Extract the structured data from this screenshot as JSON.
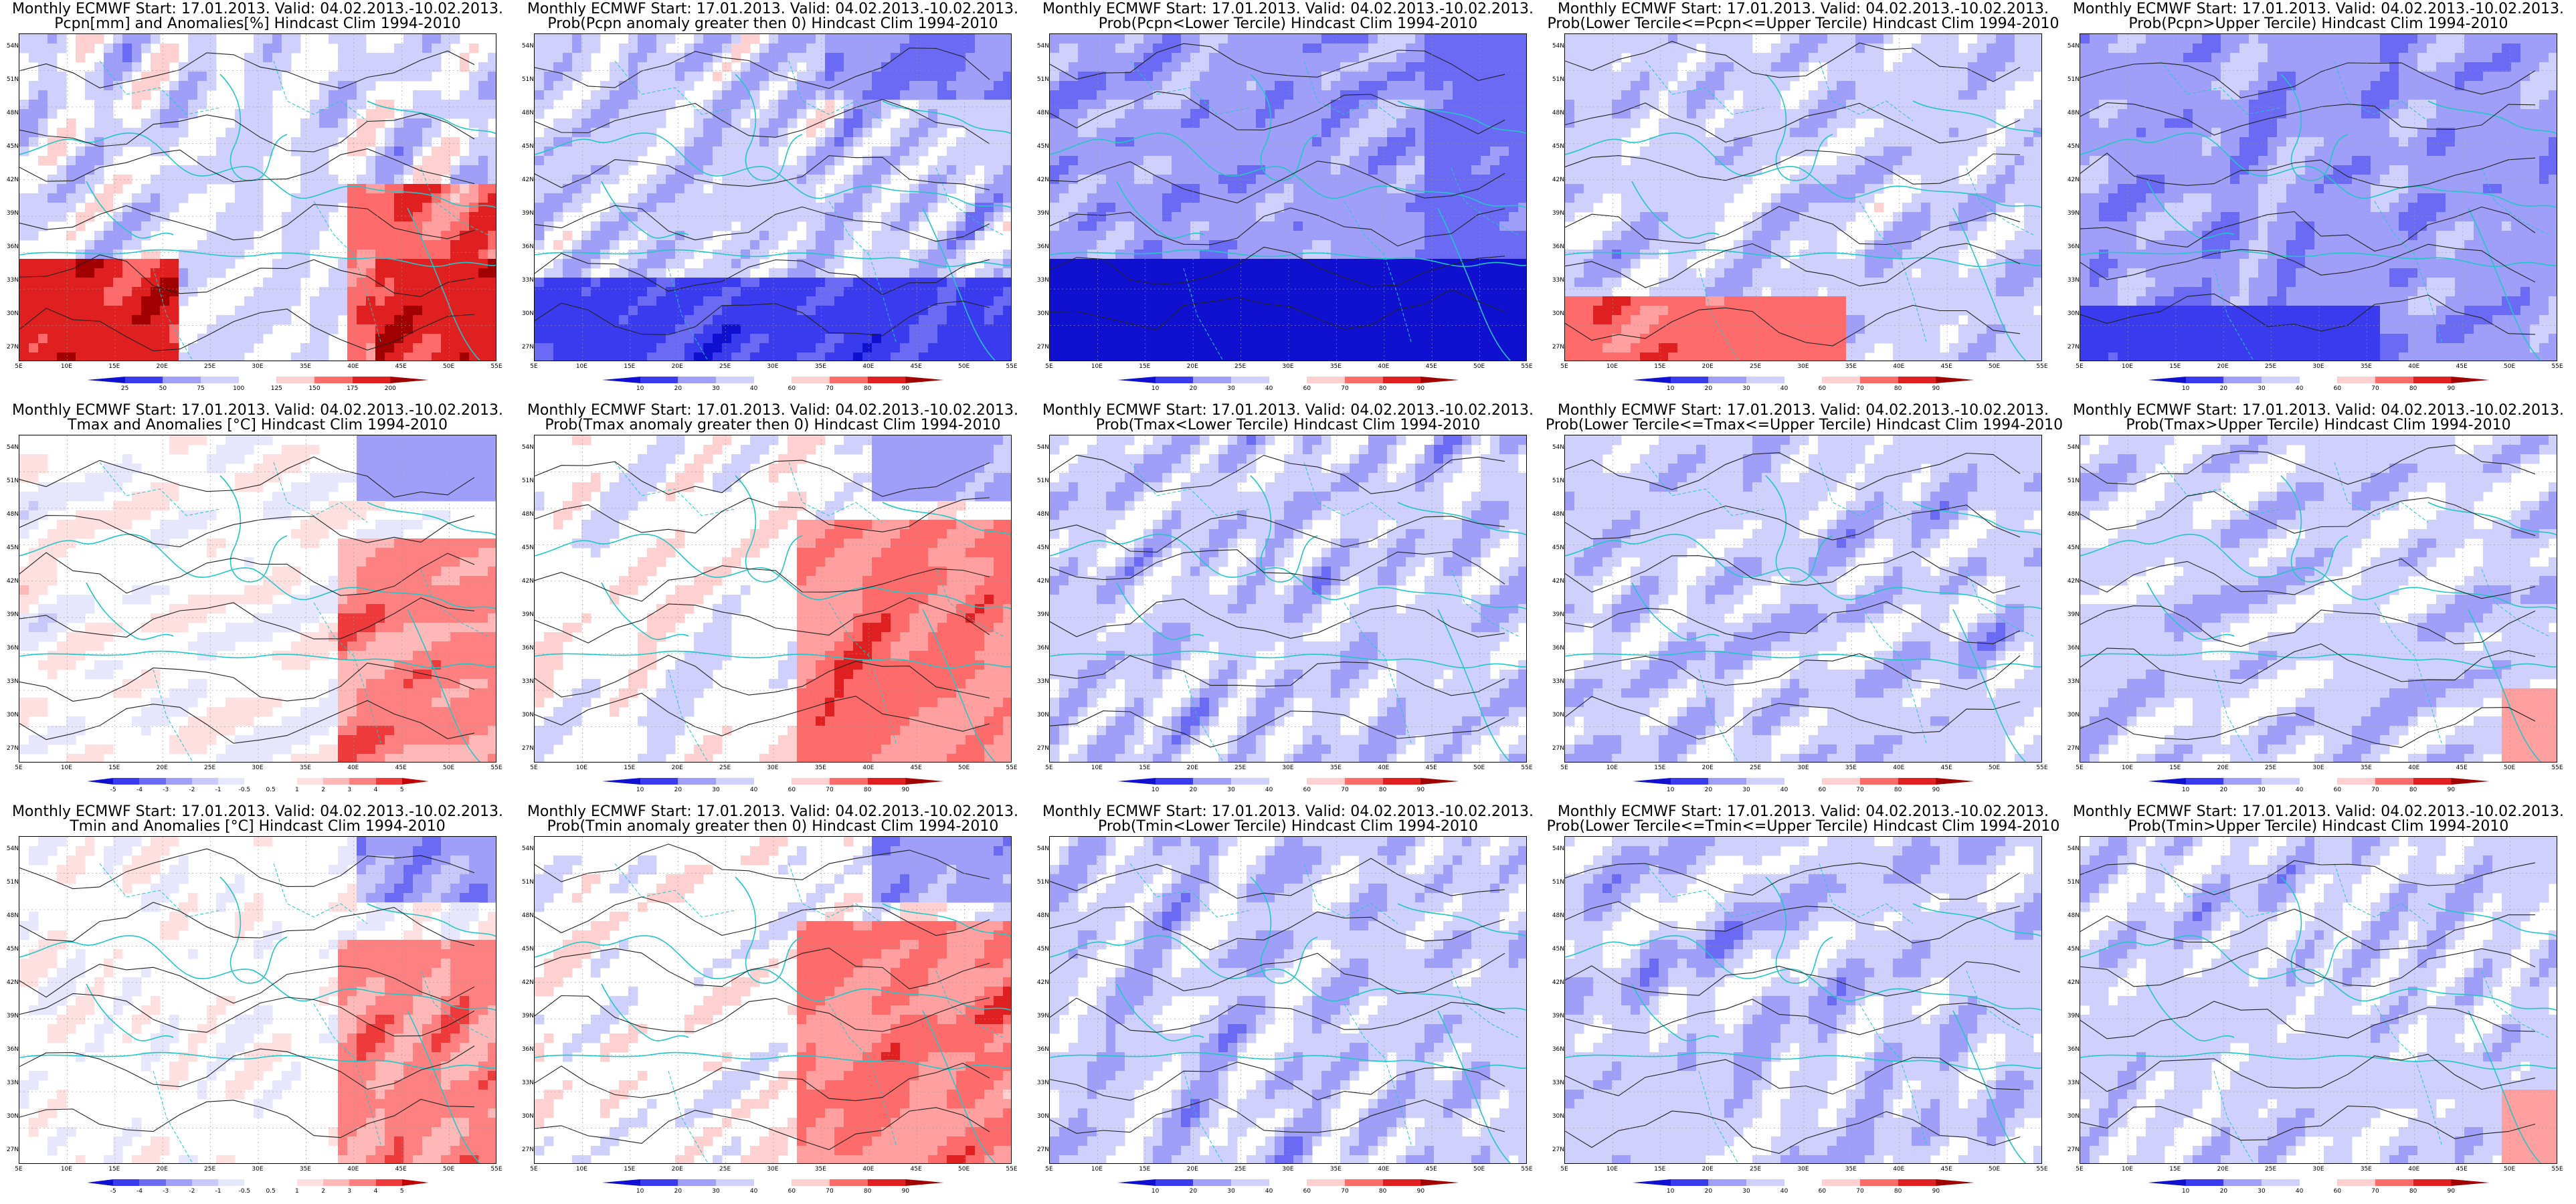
{
  "palettes": {
    "prob": [
      "#1010d0",
      "#3a3aef",
      "#6a6af5",
      "#9f9ff9",
      "#d0d0fc",
      "#ffffff",
      "#ffd0d0",
      "#ff9f9f",
      "#ff6a6a",
      "#e02020",
      "#a00000"
    ],
    "anom": [
      "#1010d0",
      "#3a3aef",
      "#6a6af5",
      "#9f9ff9",
      "#c8c8fb",
      "#e6e6fd",
      "#ffffff",
      "#ffe0e0",
      "#ffb8b8",
      "#ff8080",
      "#ee3a3a",
      "#c00000"
    ]
  },
  "axes": {
    "lat": [
      "54N",
      "51N",
      "48N",
      "45N",
      "42N",
      "39N",
      "36N",
      "33N",
      "30N",
      "27N"
    ],
    "lon": [
      "5E",
      "10E",
      "15E",
      "20E",
      "25E",
      "30E",
      "35E",
      "40E",
      "45E",
      "50E",
      "55E"
    ]
  },
  "colorbars": {
    "pcpn_anom": [
      "25",
      "50",
      "75",
      "100",
      "125",
      "150",
      "175",
      "200"
    ],
    "prob": [
      "10",
      "20",
      "30",
      "40",
      "60",
      "70",
      "80",
      "90"
    ],
    "temp_anom": [
      "-5",
      "-4",
      "-3",
      "-2",
      "-1",
      "-0.5",
      "0.5",
      "1",
      "2",
      "3",
      "4",
      "5"
    ]
  },
  "panels": [
    {
      "title1": "Monthly ECMWF Start: 17.01.2013. Valid: 04.02.2013.-10.02.2013.",
      "title2": "Pcpn[mm] and Anomalies[%] Hindcast Clim 1994-2010",
      "kind": "pcpn_anom",
      "cbar": "pcpn_anom",
      "seed": 11
    },
    {
      "title1": "Monthly ECMWF Start: 17.01.2013. Valid: 04.02.2013.-10.02.2013.",
      "title2": "Prob(Pcpn anomaly greater then 0) Hindcast Clim 1994-2010",
      "kind": "pcpn_pos",
      "cbar": "prob",
      "seed": 12
    },
    {
      "title1": "Monthly ECMWF Start: 17.01.2013. Valid: 04.02.2013.-10.02.2013.",
      "title2": "Prob(Pcpn<Lower Tercile) Hindcast Clim 1994-2010",
      "kind": "pcpn_low",
      "cbar": "prob",
      "seed": 13
    },
    {
      "title1": "Monthly ECMWF Start: 17.01.2013. Valid: 04.02.2013.-10.02.2013.",
      "title2": "Prob(Lower Tercile<=Pcpn<=Upper Tercile) Hindcast Clim 1994-2010",
      "kind": "pcpn_mid",
      "cbar": "prob",
      "seed": 14
    },
    {
      "title1": "Monthly ECMWF Start: 17.01.2013. Valid: 04.02.2013.-10.02.2013.",
      "title2": "Prob(Pcpn>Upper Tercile) Hindcast Clim 1994-2010",
      "kind": "pcpn_up",
      "cbar": "prob",
      "seed": 15
    },
    {
      "title1": "Monthly ECMWF Start: 17.01.2013. Valid: 04.02.2013.-10.02.2013.",
      "title2": "Tmax and Anomalies [°C] Hindcast Clim 1994-2010",
      "kind": "temp_anom",
      "cbar": "temp_anom",
      "seed": 21
    },
    {
      "title1": "Monthly ECMWF Start: 17.01.2013. Valid: 04.02.2013.-10.02.2013.",
      "title2": "Prob(Tmax anomaly greater then 0) Hindcast Clim 1994-2010",
      "kind": "temp_pos",
      "cbar": "prob",
      "seed": 22
    },
    {
      "title1": "Monthly ECMWF Start: 17.01.2013. Valid: 04.02.2013.-10.02.2013.",
      "title2": "Prob(Tmax<Lower Tercile) Hindcast Clim 1994-2010",
      "kind": "blue_strong",
      "cbar": "prob",
      "seed": 23
    },
    {
      "title1": "Monthly ECMWF Start: 17.01.2013. Valid: 04.02.2013.-10.02.2013.",
      "title2": "Prob(Lower Tercile<=Tmax<=Upper Tercile) Hindcast Clim 1994-2010",
      "kind": "blue_strong",
      "cbar": "prob",
      "seed": 24
    },
    {
      "title1": "Monthly ECMWF Start: 17.01.2013. Valid: 04.02.2013.-10.02.2013.",
      "title2": "Prob(Tmax>Upper Tercile) Hindcast Clim 1994-2010",
      "kind": "blue_light",
      "cbar": "prob",
      "seed": 25
    },
    {
      "title1": "Monthly ECMWF Start: 17.01.2013. Valid: 04.02.2013.-10.02.2013.",
      "title2": "Tmin and Anomalies [°C] Hindcast Clim 1994-2010",
      "kind": "temp_anom",
      "cbar": "temp_anom",
      "seed": 31
    },
    {
      "title1": "Monthly ECMWF Start: 17.01.2013. Valid: 04.02.2013.-10.02.2013.",
      "title2": "Prob(Tmin anomaly greater then 0) Hindcast Clim 1994-2010",
      "kind": "temp_pos",
      "cbar": "prob",
      "seed": 32
    },
    {
      "title1": "Monthly ECMWF Start: 17.01.2013. Valid: 04.02.2013.-10.02.2013.",
      "title2": "Prob(Tmin<Lower Tercile) Hindcast Clim 1994-2010",
      "kind": "blue_strong",
      "cbar": "prob",
      "seed": 33
    },
    {
      "title1": "Monthly ECMWF Start: 17.01.2013. Valid: 04.02.2013.-10.02.2013.",
      "title2": "Prob(Lower Tercile<=Tmin<=Upper Tercile) Hindcast Clim 1994-2010",
      "kind": "blue_strong",
      "cbar": "prob",
      "seed": 34
    },
    {
      "title1": "Monthly ECMWF Start: 17.01.2013. Valid: 04.02.2013.-10.02.2013.",
      "title2": "Prob(Tmin>Upper Tercile) Hindcast Clim 1994-2010",
      "kind": "blue_light",
      "cbar": "prob",
      "seed": 35
    }
  ]
}
